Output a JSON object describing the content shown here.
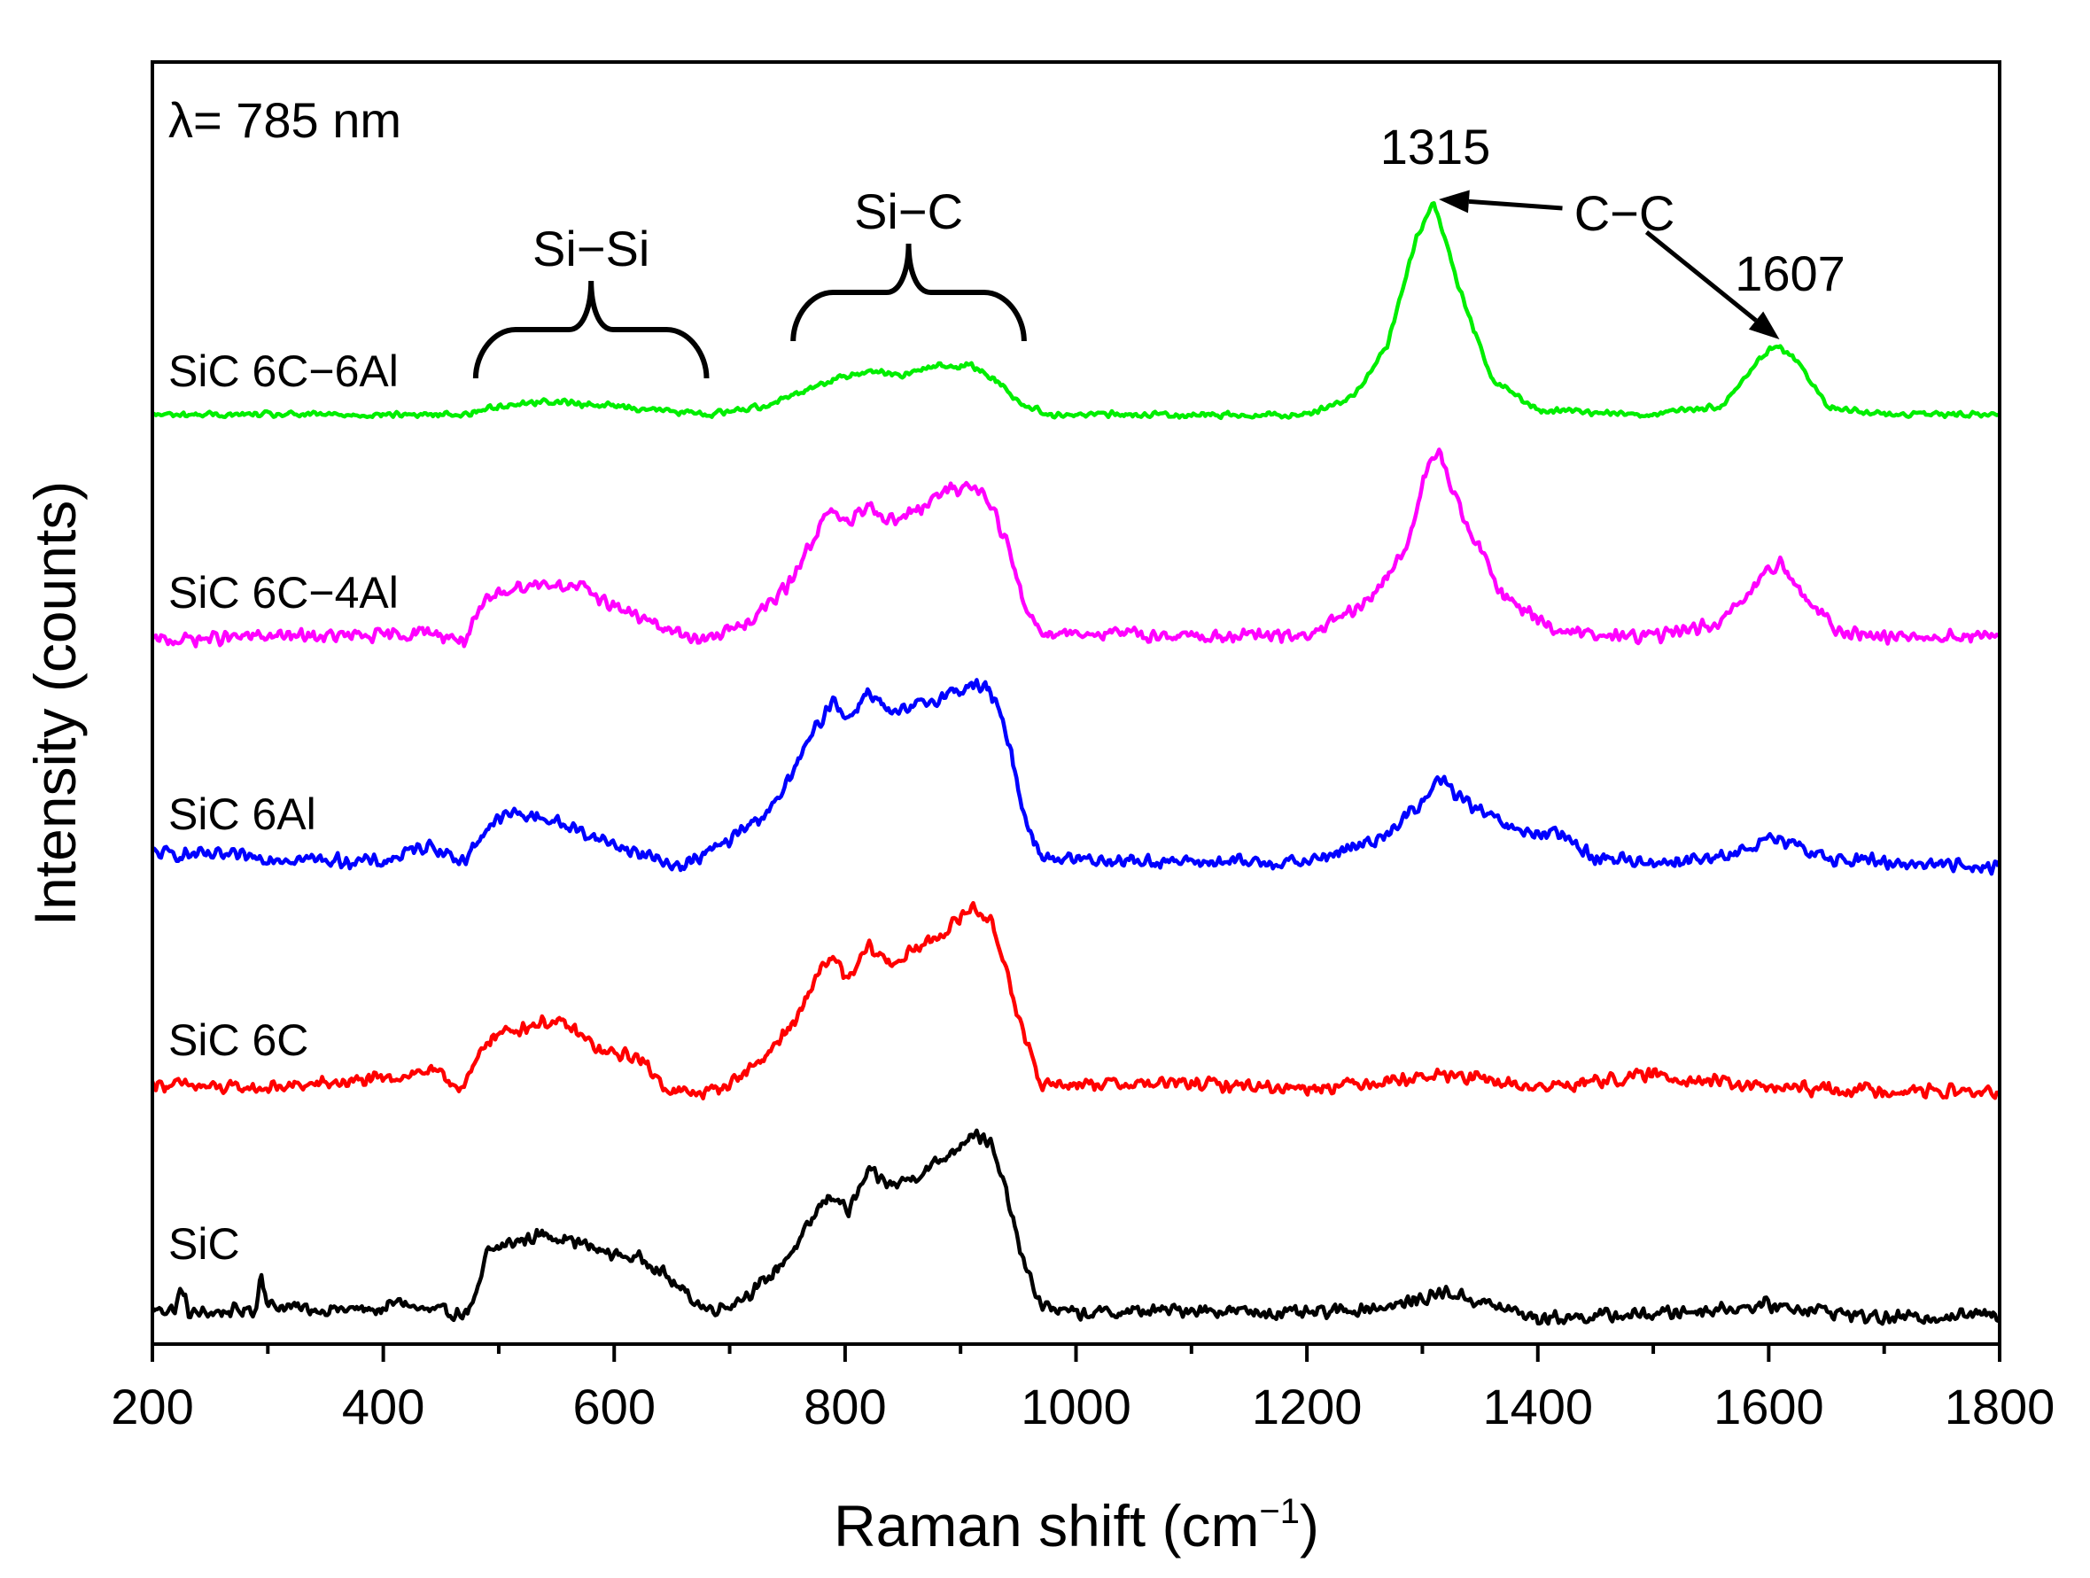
{
  "chart_data": {
    "type": "line",
    "title": "",
    "xlabel": "Raman shift (cm",
    "xlabel_sup": "−1",
    "xlabel_end": ")",
    "ylabel": "Intensity (counts)",
    "xlim": [
      200,
      1800
    ],
    "xticks": [
      200,
      400,
      600,
      800,
      1000,
      1200,
      1400,
      1600,
      1800
    ],
    "y_ticks_labeled": false,
    "laser_label": "λ= 785 nm",
    "annotations": {
      "sisi": "Si−Si",
      "sic": "Si−C",
      "cc": "C−C",
      "peak1": "1315",
      "peak2": "1607"
    },
    "brackets": [
      {
        "name": "sisi",
        "x_start": 480,
        "x_end": 680
      },
      {
        "name": "sic",
        "x_start": 755,
        "x_end": 955
      }
    ],
    "peaks": {
      "cc_1": 1315,
      "cc_2": 1607
    },
    "series": [
      {
        "name": "SiC",
        "color": "#000000",
        "label": "SiC",
        "baseline": 0.0,
        "noise": 0.009,
        "points": [
          [
            200,
            0.01
          ],
          [
            220,
            0.01
          ],
          [
            225,
            0.035
          ],
          [
            232,
            0.005
          ],
          [
            290,
            0.01
          ],
          [
            294,
            0.055
          ],
          [
            300,
            0.015
          ],
          [
            340,
            0.01
          ],
          [
            400,
            0.01
          ],
          [
            415,
            0.02
          ],
          [
            430,
            0.01
          ],
          [
            470,
            0.005
          ],
          [
            480,
            0.02
          ],
          [
            490,
            0.075
          ],
          [
            510,
            0.085
          ],
          [
            540,
            0.095
          ],
          [
            560,
            0.09
          ],
          [
            590,
            0.075
          ],
          [
            610,
            0.07
          ],
          [
            630,
            0.065
          ],
          [
            660,
            0.03
          ],
          [
            680,
            0.01
          ],
          [
            700,
            0.015
          ],
          [
            730,
            0.04
          ],
          [
            760,
            0.085
          ],
          [
            780,
            0.13
          ],
          [
            790,
            0.14
          ],
          [
            803,
            0.12
          ],
          [
            820,
            0.165
          ],
          [
            840,
            0.15
          ],
          [
            860,
            0.16
          ],
          [
            890,
            0.185
          ],
          [
            910,
            0.21
          ],
          [
            925,
            0.2
          ],
          [
            940,
            0.14
          ],
          [
            955,
            0.06
          ],
          [
            970,
            0.015
          ],
          [
            1000,
            0.005
          ],
          [
            1100,
            0.01
          ],
          [
            1200,
            0.005
          ],
          [
            1280,
            0.015
          ],
          [
            1320,
            0.03
          ],
          [
            1360,
            0.015
          ],
          [
            1400,
            0.0
          ],
          [
            1500,
            0.005
          ],
          [
            1600,
            0.015
          ],
          [
            1640,
            0.01
          ],
          [
            1700,
            0.0
          ],
          [
            1800,
            0.005
          ]
        ]
      },
      {
        "name": "SiC 6C",
        "color": "#ff0000",
        "label": "SiC 6C",
        "baseline": 0.255,
        "noise": 0.009,
        "points": [
          [
            200,
            0.01
          ],
          [
            260,
            0.005
          ],
          [
            300,
            0.005
          ],
          [
            400,
            0.015
          ],
          [
            440,
            0.025
          ],
          [
            470,
            0.005
          ],
          [
            490,
            0.06
          ],
          [
            510,
            0.07
          ],
          [
            540,
            0.08
          ],
          [
            560,
            0.075
          ],
          [
            590,
            0.045
          ],
          [
            620,
            0.04
          ],
          [
            650,
            0.0
          ],
          [
            680,
            0.0
          ],
          [
            700,
            0.01
          ],
          [
            730,
            0.04
          ],
          [
            760,
            0.085
          ],
          [
            780,
            0.145
          ],
          [
            790,
            0.15
          ],
          [
            803,
            0.125
          ],
          [
            820,
            0.165
          ],
          [
            840,
            0.145
          ],
          [
            860,
            0.16
          ],
          [
            890,
            0.185
          ],
          [
            910,
            0.21
          ],
          [
            925,
            0.195
          ],
          [
            940,
            0.14
          ],
          [
            955,
            0.06
          ],
          [
            970,
            0.01
          ],
          [
            1100,
            0.01
          ],
          [
            1200,
            0.005
          ],
          [
            1320,
            0.02
          ],
          [
            1400,
            0.005
          ],
          [
            1500,
            0.02
          ],
          [
            1600,
            0.005
          ],
          [
            1800,
            0.0
          ]
        ]
      },
      {
        "name": "SiC 6Al",
        "color": "#0000ff",
        "label": "SiC 6Al",
        "baseline": 0.51,
        "noise": 0.009,
        "points": [
          [
            200,
            0.015
          ],
          [
            300,
            0.01
          ],
          [
            400,
            0.005
          ],
          [
            440,
            0.025
          ],
          [
            470,
            0.005
          ],
          [
            490,
            0.045
          ],
          [
            510,
            0.06
          ],
          [
            540,
            0.055
          ],
          [
            580,
            0.035
          ],
          [
            620,
            0.015
          ],
          [
            660,
            0.0
          ],
          [
            700,
            0.03
          ],
          [
            740,
            0.07
          ],
          [
            770,
            0.145
          ],
          [
            790,
            0.19
          ],
          [
            803,
            0.165
          ],
          [
            820,
            0.2
          ],
          [
            840,
            0.17
          ],
          [
            860,
            0.18
          ],
          [
            890,
            0.195
          ],
          [
            910,
            0.205
          ],
          [
            925,
            0.2
          ],
          [
            940,
            0.15
          ],
          [
            955,
            0.06
          ],
          [
            970,
            0.01
          ],
          [
            1100,
            0.005
          ],
          [
            1200,
            0.005
          ],
          [
            1260,
            0.03
          ],
          [
            1300,
            0.07
          ],
          [
            1315,
            0.1
          ],
          [
            1340,
            0.07
          ],
          [
            1380,
            0.04
          ],
          [
            1420,
            0.035
          ],
          [
            1450,
            0.01
          ],
          [
            1500,
            0.005
          ],
          [
            1560,
            0.01
          ],
          [
            1600,
            0.03
          ],
          [
            1620,
            0.025
          ],
          [
            1650,
            0.01
          ],
          [
            1700,
            0.005
          ],
          [
            1800,
            0.0
          ]
        ]
      },
      {
        "name": "SiC 6C−4Al",
        "color": "#ff00ff",
        "label": "SiC 6C−4Al",
        "baseline": 0.765,
        "noise": 0.009,
        "points": [
          [
            200,
            0.0
          ],
          [
            300,
            0.005
          ],
          [
            400,
            0.005
          ],
          [
            440,
            0.01
          ],
          [
            470,
            0.0
          ],
          [
            490,
            0.045
          ],
          [
            510,
            0.06
          ],
          [
            540,
            0.065
          ],
          [
            570,
            0.06
          ],
          [
            600,
            0.04
          ],
          [
            640,
            0.015
          ],
          [
            680,
            0.0
          ],
          [
            720,
            0.025
          ],
          [
            750,
            0.06
          ],
          [
            780,
            0.135
          ],
          [
            790,
            0.145
          ],
          [
            803,
            0.13
          ],
          [
            820,
            0.155
          ],
          [
            840,
            0.135
          ],
          [
            860,
            0.145
          ],
          [
            890,
            0.17
          ],
          [
            910,
            0.175
          ],
          [
            925,
            0.16
          ],
          [
            940,
            0.11
          ],
          [
            955,
            0.04
          ],
          [
            970,
            0.01
          ],
          [
            1100,
            0.005
          ],
          [
            1200,
            0.005
          ],
          [
            1250,
            0.04
          ],
          [
            1285,
            0.1
          ],
          [
            1305,
            0.2
          ],
          [
            1315,
            0.21
          ],
          [
            1335,
            0.14
          ],
          [
            1370,
            0.05
          ],
          [
            1420,
            0.01
          ],
          [
            1450,
            0.005
          ],
          [
            1500,
            0.005
          ],
          [
            1560,
            0.02
          ],
          [
            1595,
            0.07
          ],
          [
            1610,
            0.09
          ],
          [
            1630,
            0.05
          ],
          [
            1660,
            0.01
          ],
          [
            1700,
            0.005
          ],
          [
            1800,
            0.005
          ]
        ]
      },
      {
        "name": "SiC 6C−6Al",
        "color": "#00ee00",
        "label": "SiC 6C−6Al",
        "baseline": 1.02,
        "noise": 0.004,
        "points": [
          [
            200,
            0.0
          ],
          [
            300,
            0.0
          ],
          [
            400,
            0.0
          ],
          [
            470,
            0.0
          ],
          [
            500,
            0.01
          ],
          [
            540,
            0.015
          ],
          [
            600,
            0.01
          ],
          [
            680,
            0.0
          ],
          [
            730,
            0.01
          ],
          [
            760,
            0.025
          ],
          [
            790,
            0.04
          ],
          [
            820,
            0.05
          ],
          [
            850,
            0.045
          ],
          [
            880,
            0.055
          ],
          [
            910,
            0.055
          ],
          [
            930,
            0.04
          ],
          [
            955,
            0.01
          ],
          [
            980,
            0.0
          ],
          [
            1100,
            0.0
          ],
          [
            1200,
            0.0
          ],
          [
            1240,
            0.02
          ],
          [
            1270,
            0.08
          ],
          [
            1295,
            0.2
          ],
          [
            1310,
            0.24
          ],
          [
            1330,
            0.15
          ],
          [
            1360,
            0.04
          ],
          [
            1400,
            0.005
          ],
          [
            1500,
            0.0
          ],
          [
            1560,
            0.01
          ],
          [
            1590,
            0.06
          ],
          [
            1607,
            0.08
          ],
          [
            1625,
            0.06
          ],
          [
            1650,
            0.01
          ],
          [
            1700,
            0.0
          ],
          [
            1800,
            0.0
          ]
        ]
      }
    ]
  }
}
